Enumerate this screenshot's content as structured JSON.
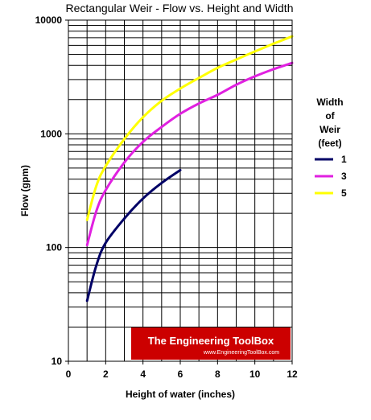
{
  "chart_data": {
    "type": "line",
    "title": "Rectangular Weir - Flow vs. Height and Width",
    "xlabel": "Height of water (inches)",
    "ylabel": "Flow (gpm)",
    "xlim": [
      0,
      12
    ],
    "ylim": [
      10,
      10000
    ],
    "yscale": "log",
    "grid": true,
    "x_ticks": [
      "0",
      "2",
      "4",
      "6",
      "8",
      "10",
      "12"
    ],
    "y_ticks": [
      "10",
      "100",
      "1000",
      "10000"
    ],
    "legend": {
      "title": "Width\nof\nWeir\n(feet)",
      "placement": "right"
    },
    "series": [
      {
        "name": "1",
        "color": "#000066",
        "x": [
          1,
          1.5,
          2,
          3,
          4,
          5,
          6
        ],
        "y": [
          34,
          70,
          110,
          180,
          270,
          370,
          480
        ]
      },
      {
        "name": "3",
        "color": "#e020e0",
        "x": [
          1,
          1.5,
          2,
          3,
          4,
          5,
          6,
          7,
          8,
          9,
          10,
          11,
          12
        ],
        "y": [
          105,
          210,
          320,
          560,
          850,
          1150,
          1500,
          1850,
          2200,
          2700,
          3200,
          3700,
          4200
        ]
      },
      {
        "name": "5",
        "color": "#ffff00",
        "x": [
          1,
          1.5,
          2,
          3,
          4,
          5,
          6,
          7,
          8,
          9,
          10,
          11,
          12
        ],
        "y": [
          175,
          350,
          520,
          900,
          1400,
          1950,
          2500,
          3100,
          3800,
          4500,
          5300,
          6200,
          7200
        ]
      }
    ],
    "watermark": {
      "main": "The Engineering ToolBox",
      "sub": "www.EngineeringToolBox.com"
    }
  }
}
